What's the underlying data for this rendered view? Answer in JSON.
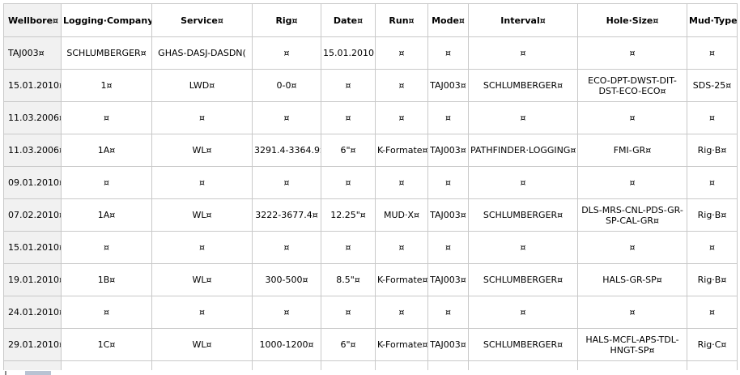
{
  "table": {
    "headers": [
      "Wellbore¤",
      "Logging·Company¤",
      "Service¤",
      "Rig¤",
      "Date¤",
      "Run¤",
      "Mode¤",
      "Interval¤",
      "Hole·Size¤",
      "Mud·Type¤"
    ],
    "rows": [
      [
        "TAJ003¤",
        "SCHLUMBERGER¤",
        "GHAS-DASJ-DASDN(",
        "¤",
        "15.01.2010(",
        "¤",
        "¤",
        "¤",
        "¤",
        "¤"
      ],
      [
        "15.01.2010¤",
        "1¤",
        "LWD¤",
        "0-0¤",
        "¤",
        "¤",
        "TAJ003¤",
        "SCHLUMBERGER¤",
        "ECO-DPT-DWST-DIT-DST-ECO-ECO¤",
        "SDS-25¤"
      ],
      [
        "11.03.2006¤",
        "¤",
        "¤",
        "¤",
        "¤",
        "¤",
        "¤",
        "¤",
        "¤",
        "¤"
      ],
      [
        "11.03.2006¤",
        "1A¤",
        "WL¤",
        "3291.4-3364.9¤",
        "6\"¤",
        "K-Formate¤",
        "TAJ003¤",
        "PATHFINDER·LOGGING¤",
        "FMI-GR¤",
        "Rig·B¤"
      ],
      [
        "09.01.2010¤",
        "¤",
        "¤",
        "¤",
        "¤",
        "¤",
        "¤",
        "¤",
        "¤",
        "¤"
      ],
      [
        "07.02.2010¤",
        "1A¤",
        "WL¤",
        "3222-3677.4¤",
        "12.25\"¤",
        "MUD·X¤",
        "TAJ003¤",
        "SCHLUMBERGER¤",
        "DLS-MRS-CNL-PDS-GR-SP-CAL-GR¤",
        "Rig·B¤"
      ],
      [
        "15.01.2010¤",
        "¤",
        "¤",
        "¤",
        "¤",
        "¤",
        "¤",
        "¤",
        "¤",
        "¤"
      ],
      [
        "19.01.2010¤",
        "1B¤",
        "WL¤",
        "300-500¤",
        "8.5\"¤",
        "K-Formate¤",
        "TAJ003¤",
        "SCHLUMBERGER¤",
        "HALS-GR-SP¤",
        "Rig·B¤"
      ],
      [
        "24.01.2010¤",
        "¤",
        "¤",
        "¤",
        "¤",
        "¤",
        "¤",
        "¤",
        "¤",
        "¤"
      ],
      [
        "29.01.2010¤",
        "1C¤",
        "WL¤",
        "1000-1200¤",
        "6\"¤",
        "K-Formate¤",
        "TAJ003¤",
        "SCHLUMBERGER¤",
        "HALS-MCFL-APS-TDL-HNGT-SP¤",
        "Rig·C¤"
      ]
    ]
  }
}
